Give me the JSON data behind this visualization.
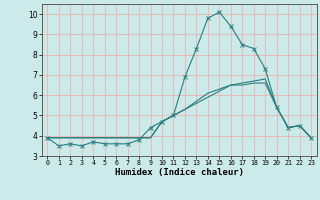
{
  "xlabel": "Humidex (Indice chaleur)",
  "x_values": [
    0,
    1,
    2,
    3,
    4,
    5,
    6,
    7,
    8,
    9,
    10,
    11,
    12,
    13,
    14,
    15,
    16,
    17,
    18,
    19,
    20,
    21,
    22,
    23
  ],
  "line1_y": [
    3.9,
    3.5,
    3.6,
    3.5,
    3.7,
    3.6,
    3.6,
    3.6,
    3.8,
    4.4,
    4.7,
    5.0,
    6.9,
    8.3,
    9.8,
    10.1,
    9.4,
    8.5,
    8.3,
    7.3,
    5.4,
    4.4,
    4.5,
    3.9
  ],
  "line2_y": [
    3.9,
    3.9,
    3.9,
    3.9,
    3.9,
    3.9,
    3.9,
    3.9,
    3.9,
    3.9,
    4.7,
    5.0,
    5.3,
    5.6,
    5.9,
    6.2,
    6.5,
    6.6,
    6.7,
    6.8,
    5.4,
    4.4,
    4.5,
    3.9
  ],
  "line3_y": [
    3.9,
    3.9,
    3.9,
    3.9,
    3.9,
    3.9,
    3.9,
    3.9,
    3.9,
    3.9,
    4.7,
    5.0,
    5.3,
    5.7,
    6.1,
    6.3,
    6.5,
    6.5,
    6.6,
    6.6,
    5.4,
    4.4,
    4.5,
    3.9
  ],
  "line_color": "#2a7d7d",
  "bg_color": "#cceaea",
  "grid_color": "#e8b4b4",
  "ylim": [
    3.0,
    10.5
  ],
  "xlim": [
    -0.5,
    23.5
  ],
  "yticks": [
    3,
    4,
    5,
    6,
    7,
    8,
    9,
    10
  ],
  "xticks": [
    0,
    1,
    2,
    3,
    4,
    5,
    6,
    7,
    8,
    9,
    10,
    11,
    12,
    13,
    14,
    15,
    16,
    17,
    18,
    19,
    20,
    21,
    22,
    23
  ]
}
